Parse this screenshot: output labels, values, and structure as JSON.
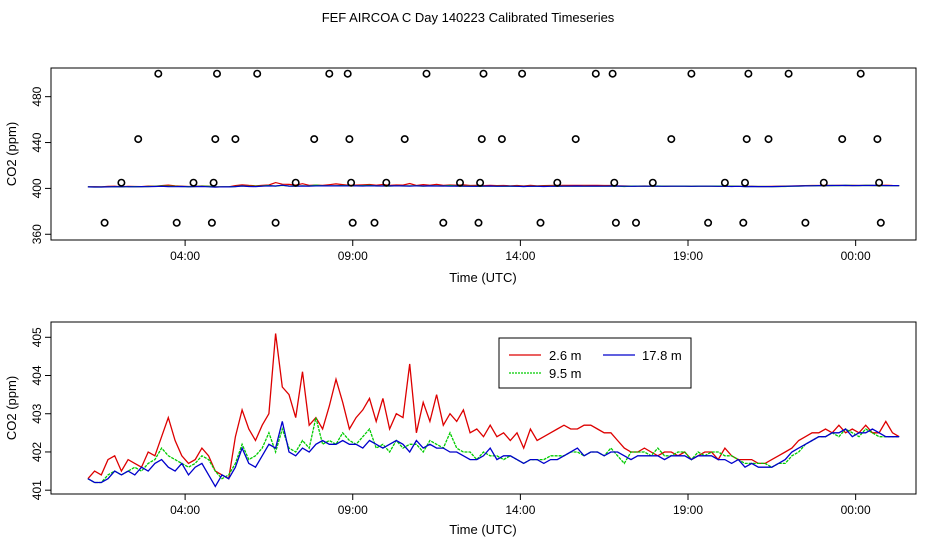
{
  "title": "FEF AIRCOA C  Day 140223  Calibrated Timeseries",
  "chart_data": [
    {
      "type": "scatter+line",
      "xlabel": "Time (UTC)",
      "ylabel": "CO2 (ppm)",
      "xlim": [
        0.0,
        25.8
      ],
      "ylim": [
        355,
        505
      ],
      "x_ticks": [
        4,
        9,
        14,
        19,
        24
      ],
      "x_tick_labels": [
        "04:00",
        "09:00",
        "14:00",
        "19:00",
        "00:00"
      ],
      "y_ticks": [
        360,
        400,
        440,
        480
      ],
      "y_tick_labels": [
        "360",
        "400",
        "440",
        "480"
      ],
      "cal_points": [
        {
          "x": 1.6,
          "y": 370
        },
        {
          "x": 2.1,
          "y": 405
        },
        {
          "x": 2.6,
          "y": 443
        },
        {
          "x": 3.2,
          "y": 500
        },
        {
          "x": 3.75,
          "y": 370
        },
        {
          "x": 4.25,
          "y": 405
        },
        {
          "x": 4.8,
          "y": 370
        },
        {
          "x": 4.85,
          "y": 405
        },
        {
          "x": 4.9,
          "y": 443
        },
        {
          "x": 4.95,
          "y": 500
        },
        {
          "x": 5.5,
          "y": 443
        },
        {
          "x": 6.15,
          "y": 500
        },
        {
          "x": 6.7,
          "y": 370
        },
        {
          "x": 7.3,
          "y": 405
        },
        {
          "x": 7.85,
          "y": 443
        },
        {
          "x": 8.3,
          "y": 500
        },
        {
          "x": 8.85,
          "y": 500
        },
        {
          "x": 8.9,
          "y": 443
        },
        {
          "x": 8.95,
          "y": 405
        },
        {
          "x": 9.0,
          "y": 370
        },
        {
          "x": 9.65,
          "y": 370
        },
        {
          "x": 10.0,
          "y": 405
        },
        {
          "x": 10.55,
          "y": 443
        },
        {
          "x": 11.2,
          "y": 500
        },
        {
          "x": 11.7,
          "y": 370
        },
        {
          "x": 12.2,
          "y": 405
        },
        {
          "x": 12.75,
          "y": 370
        },
        {
          "x": 12.8,
          "y": 405
        },
        {
          "x": 12.85,
          "y": 443
        },
        {
          "x": 12.9,
          "y": 500
        },
        {
          "x": 13.45,
          "y": 443
        },
        {
          "x": 14.05,
          "y": 500
        },
        {
          "x": 14.6,
          "y": 370
        },
        {
          "x": 15.1,
          "y": 405
        },
        {
          "x": 15.65,
          "y": 443
        },
        {
          "x": 16.25,
          "y": 500
        },
        {
          "x": 16.75,
          "y": 500
        },
        {
          "x": 16.8,
          "y": 405
        },
        {
          "x": 16.85,
          "y": 370
        },
        {
          "x": 17.45,
          "y": 370
        },
        {
          "x": 17.95,
          "y": 405
        },
        {
          "x": 18.5,
          "y": 443
        },
        {
          "x": 19.1,
          "y": 500
        },
        {
          "x": 19.6,
          "y": 370
        },
        {
          "x": 20.1,
          "y": 405
        },
        {
          "x": 20.65,
          "y": 370
        },
        {
          "x": 20.7,
          "y": 405
        },
        {
          "x": 20.75,
          "y": 443
        },
        {
          "x": 20.8,
          "y": 500
        },
        {
          "x": 21.4,
          "y": 443
        },
        {
          "x": 22.0,
          "y": 500
        },
        {
          "x": 22.5,
          "y": 370
        },
        {
          "x": 23.05,
          "y": 405
        },
        {
          "x": 23.6,
          "y": 443
        },
        {
          "x": 24.15,
          "y": 500
        },
        {
          "x": 24.65,
          "y": 443
        },
        {
          "x": 24.7,
          "y": 405
        },
        {
          "x": 24.75,
          "y": 370
        }
      ]
    },
    {
      "type": "line",
      "xlabel": "Time (UTC)",
      "ylabel": "CO2 (ppm)",
      "xlim": [
        0.0,
        25.8
      ],
      "ylim": [
        400.9,
        405.4
      ],
      "x_ticks": [
        4,
        9,
        14,
        19,
        24
      ],
      "x_tick_labels": [
        "04:00",
        "09:00",
        "14:00",
        "19:00",
        "00:00"
      ],
      "y_ticks": [
        401,
        402,
        403,
        404,
        405
      ],
      "y_tick_labels": [
        "401",
        "402",
        "403",
        "404",
        "405"
      ],
      "legend": [
        {
          "name": "2.6 m",
          "color": "#dd0000"
        },
        {
          "name": "9.5 m",
          "color": "#00cc00"
        },
        {
          "name": "17.8 m",
          "color": "#0000cc"
        }
      ],
      "series": [
        {
          "name": "2.6 m",
          "color": "#dd0000",
          "x": [
            1.1,
            1.3,
            1.5,
            1.7,
            1.9,
            2.1,
            2.3,
            2.5,
            2.7,
            2.9,
            3.1,
            3.3,
            3.5,
            3.7,
            3.9,
            4.1,
            4.3,
            4.5,
            4.7,
            4.9,
            5.1,
            5.3,
            5.5,
            5.7,
            5.9,
            6.1,
            6.3,
            6.5,
            6.7,
            6.9,
            7.1,
            7.3,
            7.5,
            7.7,
            7.9,
            8.1,
            8.3,
            8.5,
            8.7,
            8.9,
            9.1,
            9.3,
            9.5,
            9.7,
            9.9,
            10.1,
            10.3,
            10.5,
            10.7,
            10.9,
            11.1,
            11.3,
            11.5,
            11.7,
            11.9,
            12.1,
            12.3,
            12.5,
            12.7,
            12.9,
            13.1,
            13.3,
            13.5,
            13.7,
            13.9,
            14.1,
            14.3,
            14.5,
            14.7,
            14.9,
            15.1,
            15.3,
            15.5,
            15.7,
            15.9,
            16.1,
            16.3,
            16.5,
            16.7,
            16.9,
            17.1,
            17.3,
            17.5,
            17.7,
            17.9,
            18.1,
            18.3,
            18.5,
            18.7,
            18.9,
            19.1,
            19.3,
            19.5,
            19.7,
            19.9,
            20.1,
            20.3,
            20.5,
            20.7,
            20.9,
            21.1,
            21.3,
            21.5,
            21.7,
            21.9,
            22.1,
            22.3,
            22.5,
            22.7,
            22.9,
            23.1,
            23.3,
            23.5,
            23.7,
            23.9,
            24.1,
            24.3,
            24.5,
            24.7,
            24.9,
            25.1,
            25.3
          ],
          "values": [
            401.3,
            401.5,
            401.4,
            401.8,
            401.9,
            401.5,
            401.8,
            401.7,
            401.6,
            402.0,
            401.9,
            402.4,
            402.9,
            402.3,
            401.9,
            401.7,
            401.8,
            402.1,
            401.9,
            401.5,
            401.4,
            401.3,
            402.4,
            403.1,
            402.6,
            402.3,
            402.7,
            403.0,
            405.1,
            403.7,
            403.5,
            402.9,
            404.1,
            402.7,
            402.9,
            402.6,
            403.2,
            403.9,
            403.3,
            402.6,
            402.9,
            403.1,
            403.4,
            402.8,
            403.4,
            402.6,
            403.0,
            402.9,
            404.3,
            402.5,
            403.3,
            402.8,
            403.5,
            402.7,
            403.0,
            402.8,
            403.1,
            402.5,
            402.6,
            402.4,
            402.7,
            402.4,
            402.5,
            402.3,
            402.5,
            402.1,
            402.6,
            402.3,
            402.4,
            402.5,
            402.6,
            402.7,
            402.6,
            402.6,
            402.7,
            402.7,
            402.6,
            402.5,
            402.5,
            402.3,
            402.1,
            402.0,
            402.0,
            402.1,
            402.0,
            401.9,
            402.0,
            402.0,
            401.9,
            402.0,
            401.8,
            401.9,
            402.0,
            402.0,
            401.8,
            402.1,
            401.9,
            401.8,
            401.8,
            401.8,
            401.7,
            401.7,
            401.8,
            401.9,
            402.0,
            402.1,
            402.3,
            402.4,
            402.5,
            402.5,
            402.6,
            402.5,
            402.7,
            402.5,
            402.6,
            402.5,
            402.7,
            402.5,
            402.5,
            402.8,
            402.5,
            402.4
          ]
        },
        {
          "name": "9.5 m",
          "color": "#00cc00",
          "x": [
            1.1,
            1.3,
            1.5,
            1.7,
            1.9,
            2.1,
            2.3,
            2.5,
            2.7,
            2.9,
            3.1,
            3.3,
            3.5,
            3.7,
            3.9,
            4.1,
            4.3,
            4.5,
            4.7,
            4.9,
            5.1,
            5.3,
            5.5,
            5.7,
            5.9,
            6.1,
            6.3,
            6.5,
            6.7,
            6.9,
            7.1,
            7.3,
            7.5,
            7.7,
            7.9,
            8.1,
            8.3,
            8.5,
            8.7,
            8.9,
            9.1,
            9.3,
            9.5,
            9.7,
            9.9,
            10.1,
            10.3,
            10.5,
            10.7,
            10.9,
            11.1,
            11.3,
            11.5,
            11.7,
            11.9,
            12.1,
            12.3,
            12.5,
            12.7,
            12.9,
            13.1,
            13.3,
            13.5,
            13.7,
            13.9,
            14.1,
            14.3,
            14.5,
            14.7,
            14.9,
            15.1,
            15.3,
            15.5,
            15.7,
            15.9,
            16.1,
            16.3,
            16.5,
            16.7,
            16.9,
            17.1,
            17.3,
            17.5,
            17.7,
            17.9,
            18.1,
            18.3,
            18.5,
            18.7,
            18.9,
            19.1,
            19.3,
            19.5,
            19.7,
            19.9,
            20.1,
            20.3,
            20.5,
            20.7,
            20.9,
            21.1,
            21.3,
            21.5,
            21.7,
            21.9,
            22.1,
            22.3,
            22.5,
            22.7,
            22.9,
            23.1,
            23.3,
            23.5,
            23.7,
            23.9,
            24.1,
            24.3,
            24.5,
            24.7,
            24.9,
            25.1,
            25.3
          ],
          "values": [
            401.3,
            401.2,
            401.2,
            401.4,
            401.5,
            401.4,
            401.5,
            401.6,
            401.5,
            401.7,
            401.8,
            402.1,
            401.9,
            401.8,
            401.7,
            401.6,
            401.7,
            401.9,
            401.8,
            401.5,
            401.3,
            401.4,
            401.7,
            402.2,
            401.8,
            401.9,
            402.1,
            402.5,
            402.0,
            402.6,
            402.1,
            402.0,
            402.3,
            402.1,
            402.9,
            402.2,
            402.3,
            402.2,
            402.5,
            402.3,
            402.2,
            402.4,
            402.6,
            402.1,
            402.2,
            402.0,
            402.3,
            402.1,
            402.2,
            402.2,
            402.0,
            402.3,
            402.2,
            402.1,
            402.5,
            402.1,
            402.0,
            402.0,
            401.8,
            402.0,
            401.9,
            401.9,
            401.8,
            401.9,
            401.8,
            401.7,
            401.8,
            401.8,
            401.8,
            401.9,
            401.9,
            401.9,
            402.0,
            402.0,
            401.9,
            402.0,
            402.0,
            401.9,
            402.1,
            401.9,
            401.7,
            402.0,
            402.0,
            402.0,
            401.9,
            402.1,
            401.9,
            401.9,
            402.0,
            402.0,
            401.8,
            402.0,
            401.9,
            402.0,
            402.0,
            401.9,
            401.9,
            401.8,
            401.7,
            401.7,
            401.7,
            401.7,
            401.6,
            401.7,
            401.7,
            401.9,
            402.0,
            402.2,
            402.3,
            402.4,
            402.4,
            402.5,
            402.4,
            402.6,
            402.5,
            402.4,
            402.6,
            402.5,
            402.4,
            402.4,
            402.4,
            402.4
          ]
        },
        {
          "name": "17.8 m",
          "color": "#0000cc",
          "x": [
            1.1,
            1.3,
            1.5,
            1.7,
            1.9,
            2.1,
            2.3,
            2.5,
            2.7,
            2.9,
            3.1,
            3.3,
            3.5,
            3.7,
            3.9,
            4.1,
            4.3,
            4.5,
            4.7,
            4.9,
            5.1,
            5.3,
            5.5,
            5.7,
            5.9,
            6.1,
            6.3,
            6.5,
            6.7,
            6.9,
            7.1,
            7.3,
            7.5,
            7.7,
            7.9,
            8.1,
            8.3,
            8.5,
            8.7,
            8.9,
            9.1,
            9.3,
            9.5,
            9.7,
            9.9,
            10.1,
            10.3,
            10.5,
            10.7,
            10.9,
            11.1,
            11.3,
            11.5,
            11.7,
            11.9,
            12.1,
            12.3,
            12.5,
            12.7,
            12.9,
            13.1,
            13.3,
            13.5,
            13.7,
            13.9,
            14.1,
            14.3,
            14.5,
            14.7,
            14.9,
            15.1,
            15.3,
            15.5,
            15.7,
            15.9,
            16.1,
            16.3,
            16.5,
            16.7,
            16.9,
            17.1,
            17.3,
            17.5,
            17.7,
            17.9,
            18.1,
            18.3,
            18.5,
            18.7,
            18.9,
            19.1,
            19.3,
            19.5,
            19.7,
            19.9,
            20.1,
            20.3,
            20.5,
            20.7,
            20.9,
            21.1,
            21.3,
            21.5,
            21.7,
            21.9,
            22.1,
            22.3,
            22.5,
            22.7,
            22.9,
            23.1,
            23.3,
            23.5,
            23.7,
            23.9,
            24.1,
            24.3,
            24.5,
            24.7,
            24.9,
            25.1,
            25.3
          ],
          "values": [
            401.3,
            401.2,
            401.2,
            401.3,
            401.5,
            401.4,
            401.5,
            401.4,
            401.6,
            401.5,
            401.7,
            401.8,
            401.6,
            401.5,
            401.7,
            401.4,
            401.6,
            401.7,
            401.4,
            401.1,
            401.4,
            401.3,
            401.6,
            402.1,
            401.7,
            401.6,
            401.9,
            402.2,
            402.1,
            402.8,
            402.0,
            401.9,
            402.1,
            402.0,
            402.2,
            402.3,
            402.2,
            402.2,
            402.3,
            402.2,
            402.2,
            402.1,
            402.3,
            402.2,
            402.1,
            402.2,
            402.3,
            402.2,
            402.0,
            402.3,
            402.1,
            402.2,
            402.1,
            402.1,
            402.0,
            402.0,
            401.9,
            401.8,
            401.8,
            401.9,
            402.1,
            401.8,
            401.9,
            401.9,
            401.8,
            401.7,
            401.8,
            401.8,
            401.7,
            401.8,
            401.8,
            401.9,
            402.0,
            402.1,
            401.9,
            402.0,
            402.0,
            401.9,
            402.0,
            402.0,
            401.9,
            401.8,
            401.9,
            401.9,
            401.9,
            401.9,
            401.8,
            401.9,
            401.9,
            401.9,
            401.8,
            401.9,
            401.9,
            401.9,
            401.8,
            401.8,
            401.7,
            401.8,
            401.6,
            401.7,
            401.6,
            401.6,
            401.6,
            401.7,
            401.8,
            402.0,
            402.1,
            402.2,
            402.3,
            402.4,
            402.4,
            402.5,
            402.5,
            402.6,
            402.4,
            402.5,
            402.5,
            402.6,
            402.5,
            402.4,
            402.4,
            402.4
          ]
        }
      ]
    }
  ]
}
